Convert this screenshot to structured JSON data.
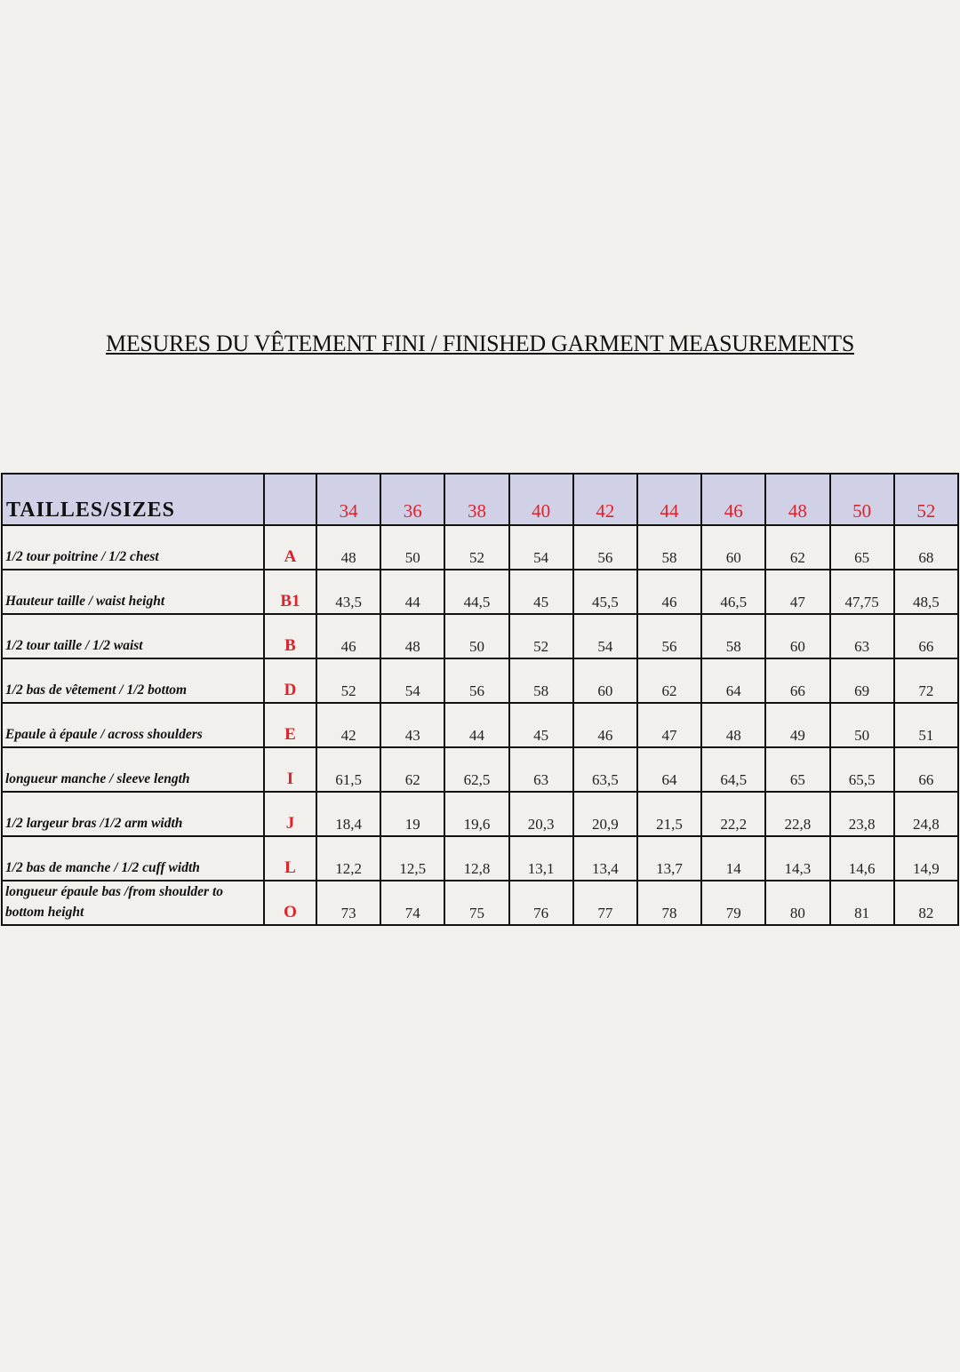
{
  "title": "MESURES DU VÊTEMENT FINI / FINISHED GARMENT MEASUREMENTS",
  "table": {
    "header_label": "TAILLES/SIZES",
    "sizes": [
      "34",
      "36",
      "38",
      "40",
      "42",
      "44",
      "46",
      "48",
      "50",
      "52"
    ],
    "rows": [
      {
        "name": "1/2 tour poitrine / 1/2 chest",
        "code": "A",
        "values": [
          "48",
          "50",
          "52",
          "54",
          "56",
          "58",
          "60",
          "62",
          "65",
          "68"
        ]
      },
      {
        "name": "Hauteur taille / waist height",
        "code": "B1",
        "values": [
          "43,5",
          "44",
          "44,5",
          "45",
          "45,5",
          "46",
          "46,5",
          "47",
          "47,75",
          "48,5"
        ]
      },
      {
        "name": "1/2 tour taille  / 1/2 waist",
        "code": "B",
        "values": [
          "46",
          "48",
          "50",
          "52",
          "54",
          "56",
          "58",
          "60",
          "63",
          "66"
        ]
      },
      {
        "name": "1/2 bas de vêtement / 1/2 bottom",
        "code": "D",
        "values": [
          "52",
          "54",
          "56",
          "58",
          "60",
          "62",
          "64",
          "66",
          "69",
          "72"
        ]
      },
      {
        "name": "Epaule à épaule  / across shoulders",
        "code": "E",
        "values": [
          "42",
          "43",
          "44",
          "45",
          "46",
          "47",
          "48",
          "49",
          "50",
          "51"
        ]
      },
      {
        "name": "longueur manche  / sleeve length",
        "code": "I",
        "values": [
          "61,5",
          "62",
          "62,5",
          "63",
          "63,5",
          "64",
          "64,5",
          "65",
          "65,5",
          "66"
        ]
      },
      {
        "name": "1/2 largeur bras /1/2  arm width",
        "code": "J",
        "values": [
          "18,4",
          "19",
          "19,6",
          "20,3",
          "20,9",
          "21,5",
          "22,2",
          "22,8",
          "23,8",
          "24,8"
        ]
      },
      {
        "name": "1/2 bas de manche  / 1/2  cuff width",
        "code": "L",
        "values": [
          "12,2",
          "12,5",
          "12,8",
          "13,1",
          "13,4",
          "13,7",
          "14",
          "14,3",
          "14,6",
          "14,9"
        ]
      },
      {
        "name": "longueur épaule bas /from shoulder to bottom height",
        "code": "O",
        "values": [
          "73",
          "74",
          "75",
          "76",
          "77",
          "78",
          "79",
          "80",
          "81",
          "82"
        ]
      }
    ]
  },
  "colors": {
    "accent": "#e0202a",
    "header_bg": "#d0d1e6",
    "page_bg": "#f1f0ec"
  }
}
